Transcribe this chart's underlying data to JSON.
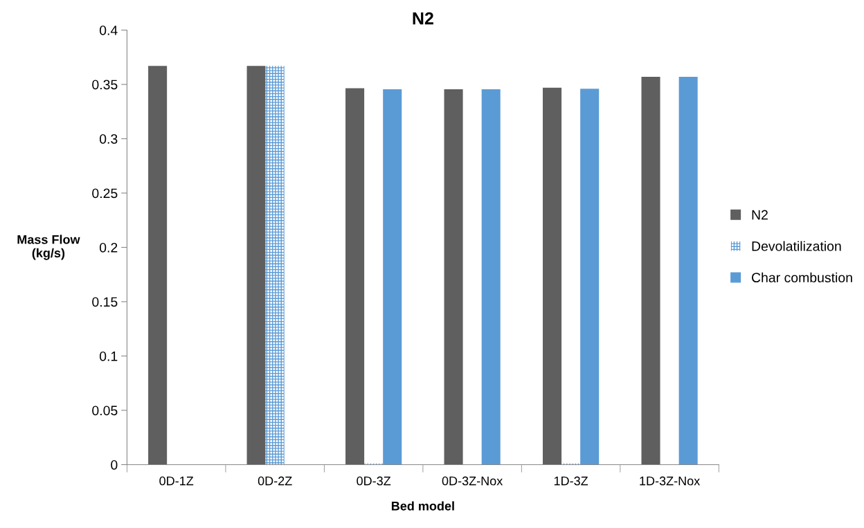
{
  "chart_data": {
    "type": "bar",
    "title": "N2",
    "xlabel": "Bed model",
    "ylabel": "Mass Flow\n(kg/s)",
    "categories": [
      "0D-1Z",
      "0D-2Z",
      "0D-3Z",
      "0D-3Z-Nox",
      "1D-3Z",
      "1D-3Z-Nox"
    ],
    "series": [
      {
        "name": "N2",
        "color": "#5f5f5f",
        "values": [
          0.367,
          0.367,
          0.3465,
          0.3455,
          0.347,
          0.357
        ]
      },
      {
        "name": "Devolatilization",
        "color": "#5b9bd5",
        "values": [
          null,
          0.367,
          0.001,
          null,
          0.001,
          null
        ]
      },
      {
        "name": "Char combustion",
        "color": "#5b9bd5",
        "values": [
          null,
          null,
          0.3455,
          0.3455,
          0.346,
          0.357
        ]
      }
    ],
    "ylim": [
      0,
      0.4
    ],
    "yticks": [
      0,
      0.05,
      0.1,
      0.15,
      0.2,
      0.25,
      0.3,
      0.35,
      0.4
    ],
    "grid": false,
    "legend": "right"
  }
}
